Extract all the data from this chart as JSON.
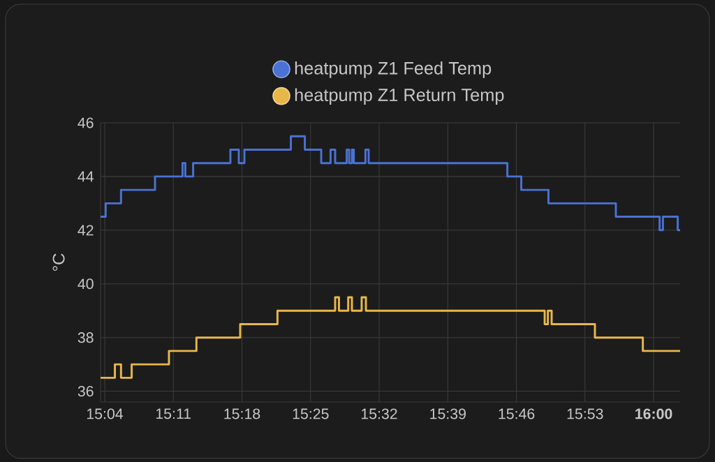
{
  "chart_data": {
    "type": "step",
    "ylabel": "°C",
    "xlim": [
      15.0596,
      16.045
    ],
    "ylim": [
      35.6,
      46
    ],
    "xticks": [
      {
        "value": 15.0667,
        "label": "15:04"
      },
      {
        "value": 15.1833,
        "label": "15:11"
      },
      {
        "value": 15.3,
        "label": "15:18"
      },
      {
        "value": 15.4167,
        "label": "15:25"
      },
      {
        "value": 15.5333,
        "label": "15:32"
      },
      {
        "value": 15.65,
        "label": "15:39"
      },
      {
        "value": 15.7667,
        "label": "15:46"
      },
      {
        "value": 15.8833,
        "label": "15:53"
      },
      {
        "value": 16.0,
        "label": "**16:00**"
      }
    ],
    "yticks": [
      36,
      38,
      40,
      42,
      44,
      46
    ],
    "grid": true,
    "legend": "top",
    "series": [
      {
        "name": "heatpump Z1 Feed Temp",
        "color": "#4a72d4",
        "x": [
          15.0596,
          15.0683,
          15.0944,
          15.1522,
          15.199,
          15.2037,
          15.217,
          15.2804,
          15.2947,
          15.3042,
          15.3832,
          15.407,
          15.4348,
          15.4507,
          15.4585,
          15.4782,
          15.4823,
          15.487,
          15.4902,
          15.51,
          15.5155,
          15.7513,
          15.775,
          15.8212,
          15.9358,
          16.0102,
          16.0158,
          16.041,
          16.045
        ],
        "values": [
          42.5,
          43,
          43.5,
          44,
          44.5,
          44,
          44.5,
          45,
          44.5,
          45,
          45.5,
          45,
          44.5,
          45,
          44.5,
          45,
          44.5,
          45,
          44.5,
          45,
          44.5,
          44,
          43.5,
          43,
          42.5,
          42,
          42.5,
          42,
          42
        ]
      },
      {
        "name": "heatpump Z1 Return Temp",
        "color": "#e8b74a",
        "x": [
          15.0596,
          15.084,
          15.0944,
          15.1125,
          15.1759,
          15.2226,
          15.297,
          15.3604,
          15.4585,
          15.465,
          15.4807,
          15.487,
          15.5036,
          15.5108,
          15.8148,
          15.8202,
          15.8266,
          15.9002,
          15.9817,
          16.045
        ],
        "values": [
          36.5,
          37,
          36.5,
          37,
          37.5,
          38,
          38.5,
          39,
          39.5,
          39,
          39.5,
          39,
          39.5,
          39,
          38.5,
          39,
          38.5,
          38,
          37.5,
          37.5
        ]
      }
    ]
  }
}
